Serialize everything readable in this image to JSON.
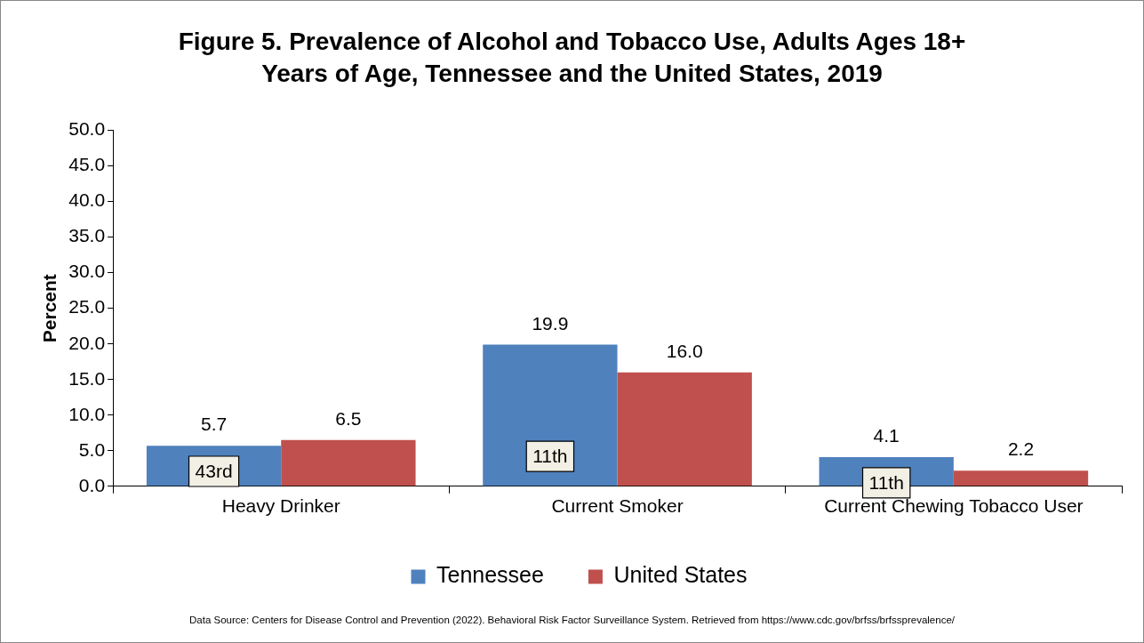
{
  "chart_data": {
    "type": "bar",
    "title": "Figure 5. Prevalence of Alcohol and Tobacco Use, Adults Ages 18+ Years of Age, Tennessee and the United States, 2019",
    "ylabel": "Percent",
    "categories": [
      "Heavy Drinker",
      "Current Smoker",
      "Current Chewing Tobacco User"
    ],
    "series": [
      {
        "name": "Tennessee",
        "color": "#4f81bd",
        "values": [
          5.7,
          19.9,
          4.1
        ],
        "value_labels": [
          "5.7",
          "19.9",
          "4.1"
        ]
      },
      {
        "name": "United States",
        "color": "#c0504d",
        "values": [
          6.5,
          16.0,
          2.2
        ],
        "value_labels": [
          "6.5",
          "16.0",
          "2.2"
        ]
      }
    ],
    "ylim": [
      0,
      50
    ],
    "yticks": [
      {
        "value": 0,
        "label": "0.0"
      },
      {
        "value": 5,
        "label": "5.0"
      },
      {
        "value": 10,
        "label": "10.0"
      },
      {
        "value": 15,
        "label": "15.0"
      },
      {
        "value": 20,
        "label": "20.0"
      },
      {
        "value": 25,
        "label": "25.0"
      },
      {
        "value": 30,
        "label": "30.0"
      },
      {
        "value": 35,
        "label": "35.0"
      },
      {
        "value": 40,
        "label": "40.0"
      },
      {
        "value": 45,
        "label": "45.0"
      },
      {
        "value": 50,
        "label": "50.0"
      }
    ],
    "grid": false,
    "legend": "bottom",
    "annotations": [
      {
        "text": "43rd",
        "x": "Heavy Drinker",
        "y": 2.1
      },
      {
        "text": "11th",
        "x": "Current Smoker",
        "y": 4.2
      },
      {
        "text": "11th",
        "x": "Current Chewing Tobacco User",
        "y": 0.5
      },
      "Data Source: Centers for Disease Control and Prevention (2022). Behavioral Risk Factor Surveillance System. Retrieved from https://www.cdc.gov/brfss/brfssprevalence/"
    ]
  }
}
